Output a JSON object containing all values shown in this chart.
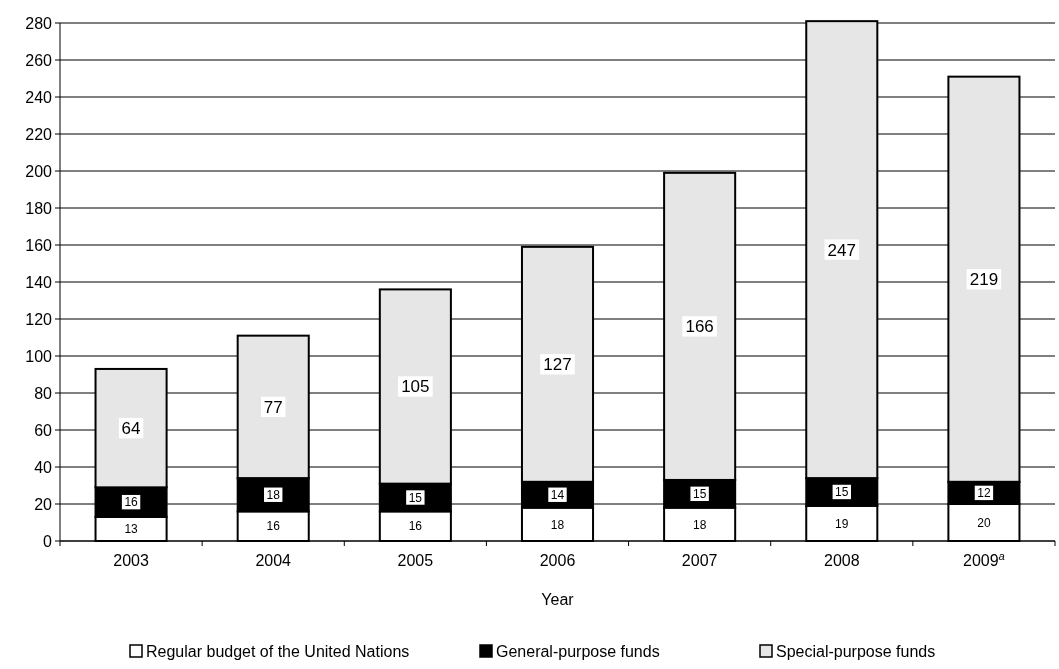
{
  "chart_data": {
    "type": "bar",
    "stacked": true,
    "xlabel": "Year",
    "categories": [
      "2003",
      "2004",
      "2005",
      "2006",
      "2007",
      "2008",
      "2009$^{a}$"
    ],
    "series": [
      {
        "name": "Regular budget of the United Nations",
        "color": "#ffffff",
        "values": [
          13,
          16,
          16,
          18,
          18,
          19,
          20
        ]
      },
      {
        "name": "General-purpose funds",
        "color": "#000000",
        "values": [
          16,
          18,
          15,
          14,
          15,
          15,
          12
        ]
      },
      {
        "name": "Special-purpose funds",
        "color": "#e6e6e6",
        "values": [
          64,
          77,
          105,
          127,
          166,
          247,
          219
        ]
      }
    ],
    "ylim": [
      0,
      280
    ],
    "yticks": [
      0,
      20,
      40,
      60,
      80,
      100,
      120,
      140,
      160,
      180,
      200,
      220,
      240,
      260,
      280
    ],
    "grid": "y",
    "legend": "bottom",
    "data_labels": true
  }
}
